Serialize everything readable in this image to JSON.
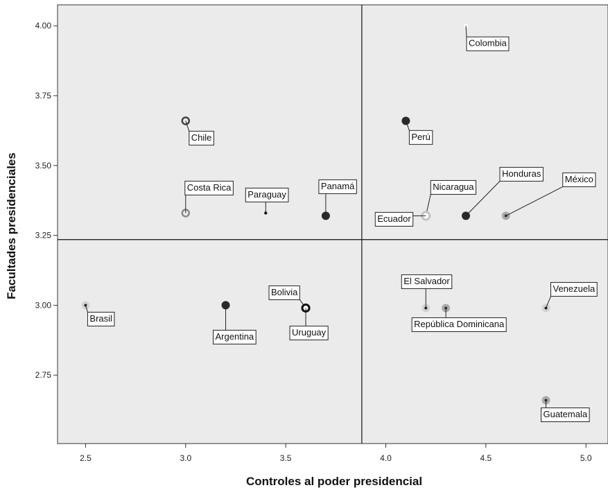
{
  "chart_data": {
    "type": "scatter",
    "title": "",
    "xlabel": "Controles al poder presidencial",
    "ylabel": "Facultades presidenciales",
    "xlim": [
      2.36,
      5.11
    ],
    "ylim": [
      2.505,
      4.075
    ],
    "xticks": [
      "2.5",
      "3.0",
      "3.5",
      "4.0",
      "4.5",
      "5.0"
    ],
    "yticks": [
      "2.75",
      "3.00",
      "3.25",
      "3.50",
      "3.75",
      "4.00"
    ],
    "reference_lines": {
      "x": 3.88,
      "y": 3.235
    },
    "grid": false,
    "background": "#ebebeb",
    "points": [
      {
        "label": "Colombia",
        "x": 4.4,
        "y": 4.0,
        "style": "white-dot"
      },
      {
        "label": "Chile",
        "x": 3.0,
        "y": 3.66,
        "style": "ring-dark"
      },
      {
        "label": "Perú",
        "x": 4.1,
        "y": 3.66,
        "style": "black-dot"
      },
      {
        "label": "Costa Rica",
        "x": 3.0,
        "y": 3.33,
        "style": "ring-gray"
      },
      {
        "label": "Paraguay",
        "x": 3.4,
        "y": 3.33,
        "style": "small-dot"
      },
      {
        "label": "Panamá",
        "x": 3.7,
        "y": 3.32,
        "style": "black-dot"
      },
      {
        "label": "Nicaragua",
        "x": 4.2,
        "y": 3.32,
        "style": "ring-light"
      },
      {
        "label": "Ecuador",
        "x": 4.2,
        "y": 3.32,
        "style": "ring-light"
      },
      {
        "label": "Honduras",
        "x": 4.4,
        "y": 3.32,
        "style": "black-dot"
      },
      {
        "label": "México",
        "x": 4.6,
        "y": 3.32,
        "style": "gray-dot"
      },
      {
        "label": "Brasil",
        "x": 2.5,
        "y": 3.0,
        "style": "light-dot"
      },
      {
        "label": "Argentina",
        "x": 3.2,
        "y": 3.0,
        "style": "black-dot"
      },
      {
        "label": "Bolivia",
        "x": 3.6,
        "y": 2.99,
        "style": "ring-black"
      },
      {
        "label": "Uruguay",
        "x": 3.6,
        "y": 2.99,
        "style": "ring-black"
      },
      {
        "label": "El Salvador",
        "x": 4.2,
        "y": 2.99,
        "style": "light-dot"
      },
      {
        "label": "República Dominicana",
        "x": 4.3,
        "y": 2.99,
        "style": "gray-dot"
      },
      {
        "label": "Venezuela",
        "x": 4.8,
        "y": 2.99,
        "style": "light-dot"
      },
      {
        "label": "Guatemala",
        "x": 4.8,
        "y": 2.66,
        "style": "gray-dot"
      }
    ]
  }
}
